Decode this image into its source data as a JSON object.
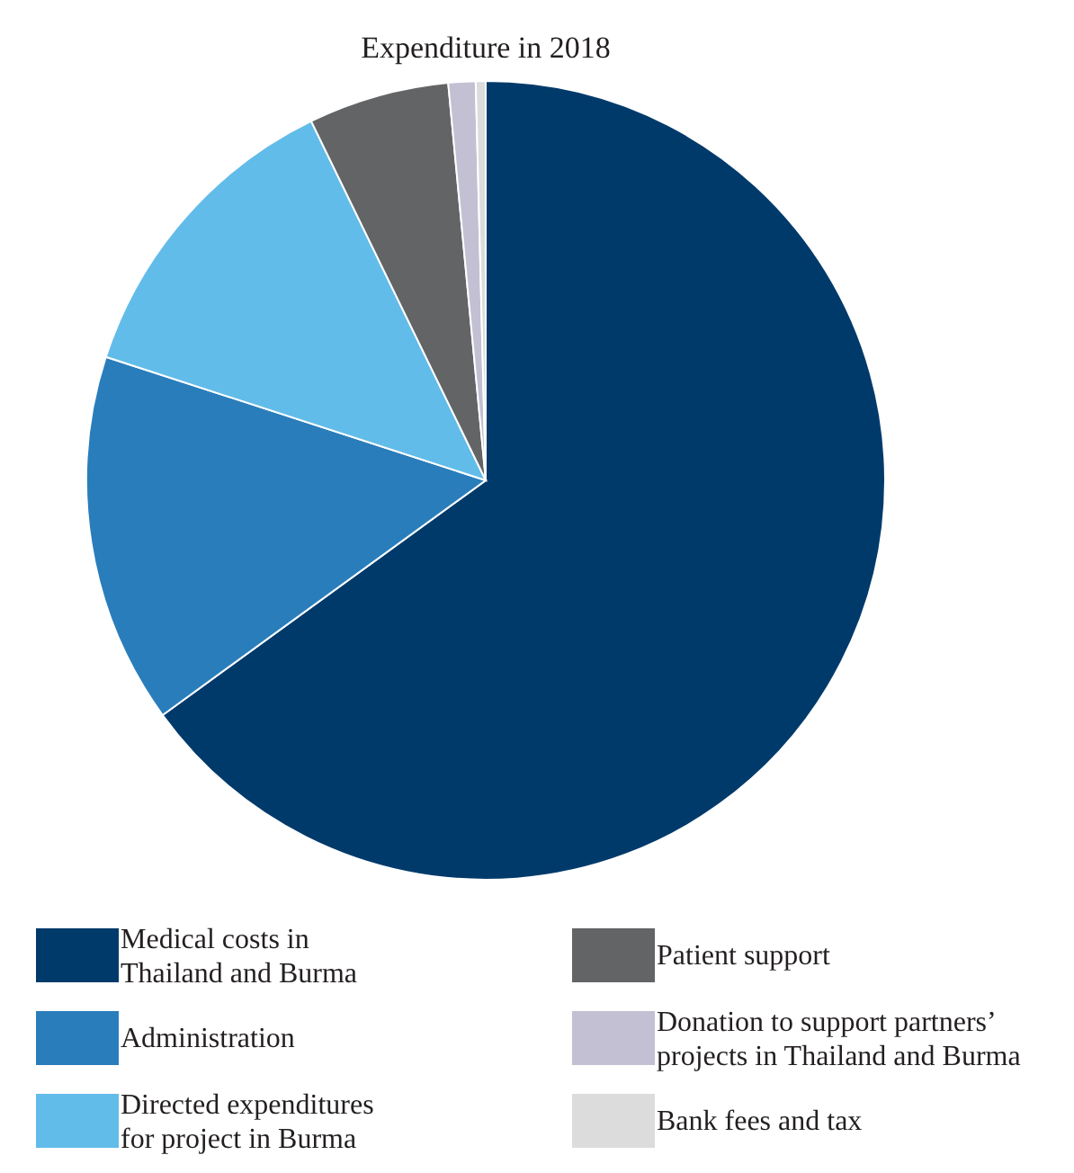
{
  "chart_data": {
    "type": "pie",
    "title": "Expenditure in 2018",
    "categories": [
      "Medical costs in Thailand and Burma",
      "Administration",
      "Directed expenditures for project in Burma",
      "Patient support",
      "Donation to support partners’ projects in Thailand and Burma",
      "Bank fees and tax"
    ],
    "values": [
      65.0,
      15.0,
      12.8,
      5.7,
      1.1,
      0.4
    ],
    "colors": [
      "#003a6b",
      "#2a7dbb",
      "#62bce9",
      "#636466",
      "#c2c0d2",
      "#dcdcdc"
    ],
    "legend": "bottom"
  }
}
